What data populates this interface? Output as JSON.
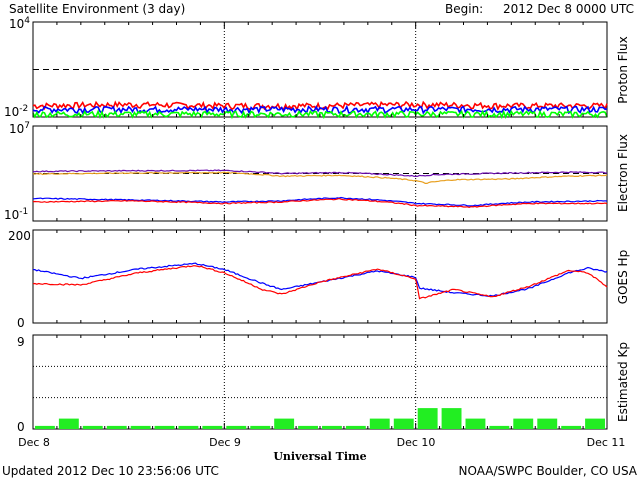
{
  "title": "Satellite Environment (3 day)",
  "begin_label": "Begin:",
  "begin_value": "2012 Dec 8 0000 UTC",
  "xlabel": "Universal Time",
  "updated": "Updated 2012 Dec 10 23:56:06 UTC",
  "credit": "NOAA/SWPC Boulder, CO USA",
  "x_ticks": [
    "Dec 8",
    "Dec 9",
    "Dec 10",
    "Dec 11"
  ],
  "colors": {
    "red": "#ff0000",
    "blue": "#0000ff",
    "green": "#00ff00",
    "purple": "#6a0dad",
    "orange": "#e8a020",
    "kp_bar": "#22ee22"
  },
  "chart_data": [
    {
      "type": "line",
      "ylabel": "Proton Flux",
      "yscale": "log",
      "ylim": [
        0.01,
        10000
      ],
      "tick_labels": [
        "10^4",
        "10^-2"
      ],
      "threshold": 10,
      "x_units": "days since Dec 8 0000 UTC",
      "series": [
        {
          "color": "red",
          "x": [
            0,
            0.5,
            1,
            1.5,
            2,
            2.5,
            3
          ],
          "y": [
            0.05,
            0.06,
            0.05,
            0.05,
            0.06,
            0.05,
            0.05
          ]
        },
        {
          "color": "blue",
          "x": [
            0,
            0.5,
            1,
            1.5,
            2,
            2.5,
            3
          ],
          "y": [
            0.03,
            0.03,
            0.03,
            0.03,
            0.03,
            0.03,
            0.03
          ]
        },
        {
          "color": "green",
          "x": [
            0,
            0.5,
            1,
            1.5,
            2,
            2.5,
            3
          ],
          "y": [
            0.015,
            0.015,
            0.015,
            0.015,
            0.015,
            0.015,
            0.015
          ]
        }
      ]
    },
    {
      "type": "line",
      "ylabel": "Electron Flux",
      "yscale": "log",
      "ylim": [
        0.1,
        10000000
      ],
      "tick_labels": [
        "10^7",
        "10^-1"
      ],
      "threshold": 1000,
      "series": [
        {
          "color": "purple",
          "x": [
            0,
            0.5,
            1,
            1.3,
            1.6,
            2,
            2.1,
            2.5,
            2.8,
            3
          ],
          "y": [
            1500,
            1700,
            1800,
            1000,
            1200,
            600,
            800,
            1100,
            1300,
            1200
          ]
        },
        {
          "color": "orange",
          "x": [
            0,
            0.5,
            1,
            1.3,
            1.6,
            2,
            2.05,
            2.2,
            2.5,
            2.8,
            3
          ],
          "y": [
            900,
            1100,
            1200,
            600,
            700,
            250,
            150,
            300,
            350,
            600,
            700
          ]
        },
        {
          "color": "blue",
          "x": [
            0,
            0.5,
            1,
            1.3,
            1.6,
            2,
            2.3,
            2.6,
            3
          ],
          "y": [
            8,
            6,
            4,
            5,
            9,
            3,
            2,
            4,
            5
          ]
        },
        {
          "color": "red",
          "x": [
            0,
            0.5,
            1,
            1.3,
            1.6,
            2,
            2.3,
            2.6,
            3
          ],
          "y": [
            4,
            5,
            3,
            4,
            7,
            2,
            1.5,
            3,
            3
          ]
        }
      ]
    },
    {
      "type": "line",
      "ylabel": "GOES Hp",
      "ylim": [
        0,
        200
      ],
      "tick_labels": [
        "200",
        "0"
      ],
      "series": [
        {
          "color": "blue",
          "x": [
            0,
            0.25,
            0.55,
            0.85,
            1.0,
            1.2,
            1.3,
            1.5,
            1.8,
            2.0,
            2.02,
            2.2,
            2.4,
            2.6,
            2.8,
            2.9,
            3.0
          ],
          "y": [
            115,
            96,
            116,
            128,
            115,
            85,
            72,
            88,
            112,
            98,
            75,
            65,
            58,
            75,
            108,
            118,
            110
          ]
        },
        {
          "color": "red",
          "x": [
            0,
            0.25,
            0.55,
            0.85,
            1.0,
            1.2,
            1.3,
            1.5,
            1.8,
            2.0,
            2.02,
            2.2,
            2.4,
            2.6,
            2.8,
            2.9,
            3.0
          ],
          "y": [
            85,
            82,
            108,
            124,
            108,
            72,
            62,
            88,
            116,
            95,
            52,
            72,
            56,
            80,
            113,
            108,
            78
          ]
        }
      ]
    },
    {
      "type": "bar",
      "ylabel": "Estimated Kp",
      "ylim": [
        0,
        9
      ],
      "tick_labels": [
        "9",
        "0"
      ],
      "bar_width_hours": 3,
      "values": [
        0.3,
        1,
        0.3,
        0.3,
        0.3,
        0.3,
        0.3,
        0.3,
        0.3,
        0.3,
        1,
        0.3,
        0.3,
        0.3,
        1,
        1,
        2,
        2,
        1,
        0.3,
        1,
        1,
        0.3,
        1
      ]
    }
  ]
}
